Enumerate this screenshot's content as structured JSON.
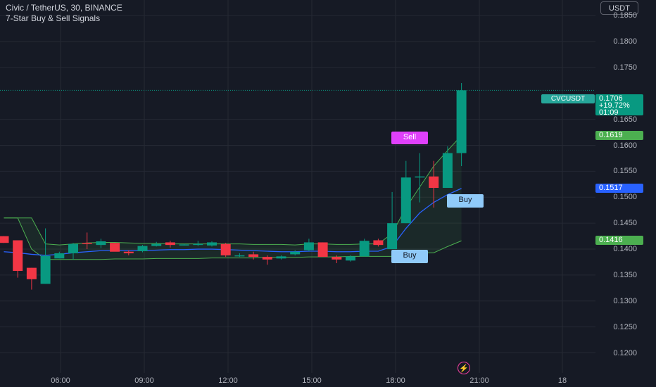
{
  "header": {
    "symbol_line": "Civic / TetherUS, 30, BINANCE",
    "indicator_line": "7-Star Buy & Sell Signals"
  },
  "currency_button": "USDT",
  "symbol_tag": "CVCUSDT",
  "last_price": {
    "price": "0.1706",
    "change": "+19.72%",
    "countdown": "01:09",
    "color": "#089981"
  },
  "price_scale": {
    "labels": [
      "0.1850",
      "0.1800",
      "0.1750",
      "0.1650",
      "0.1600",
      "0.1550",
      "0.1500",
      "0.1450",
      "0.1400",
      "0.1350",
      "0.1300",
      "0.1250",
      "0.1200"
    ]
  },
  "price_tags": [
    {
      "text": "0.1619",
      "color": "#4caf50",
      "value": 0.1619
    },
    {
      "text": "0.1517",
      "color": "#2962ff",
      "value": 0.1517
    },
    {
      "text": "0.1416",
      "color": "#4caf50",
      "value": 0.1416
    }
  ],
  "time_axis": {
    "labels": [
      "06:00",
      "09:00",
      "12:00",
      "15:00",
      "18:00",
      "21:00",
      "18"
    ]
  },
  "signals": [
    {
      "text": "Sell",
      "kind": "sell",
      "color": "#e040fb"
    },
    {
      "text": "Buy",
      "kind": "buy",
      "color": "#90caf9"
    },
    {
      "text": "Buy",
      "kind": "buy",
      "color": "#90caf9"
    }
  ],
  "colors": {
    "up": "#089981",
    "down": "#f23645",
    "background": "#161a25",
    "grid": "#252934",
    "blue_line": "#2962ff",
    "green_line": "#4caf50"
  },
  "chart_data": {
    "type": "candlestick",
    "symbol": "CVCUSDT",
    "interval": "30",
    "exchange": "BINANCE",
    "ylim": [
      0.1175,
      0.188
    ],
    "candles": [
      {
        "o": 0.1425,
        "h": 0.1425,
        "l": 0.1412,
        "c": 0.1412
      },
      {
        "o": 0.1417,
        "h": 0.1417,
        "l": 0.1345,
        "c": 0.1358
      },
      {
        "o": 0.1364,
        "h": 0.1364,
        "l": 0.1322,
        "c": 0.1342
      },
      {
        "o": 0.1333,
        "h": 0.144,
        "l": 0.1333,
        "c": 0.1387
      },
      {
        "o": 0.1382,
        "h": 0.1395,
        "l": 0.1382,
        "c": 0.1392
      },
      {
        "o": 0.1392,
        "h": 0.1412,
        "l": 0.138,
        "c": 0.141
      },
      {
        "o": 0.1412,
        "h": 0.1432,
        "l": 0.14,
        "c": 0.141
      },
      {
        "o": 0.1408,
        "h": 0.142,
        "l": 0.1402,
        "c": 0.1415
      },
      {
        "o": 0.1412,
        "h": 0.1412,
        "l": 0.1396,
        "c": 0.1395
      },
      {
        "o": 0.1395,
        "h": 0.1398,
        "l": 0.1388,
        "c": 0.1392
      },
      {
        "o": 0.1396,
        "h": 0.1408,
        "l": 0.1394,
        "c": 0.1406
      },
      {
        "o": 0.1406,
        "h": 0.1414,
        "l": 0.1405,
        "c": 0.141
      },
      {
        "o": 0.1413,
        "h": 0.1416,
        "l": 0.1403,
        "c": 0.1408
      },
      {
        "o": 0.1408,
        "h": 0.141,
        "l": 0.1407,
        "c": 0.1409
      },
      {
        "o": 0.141,
        "h": 0.1416,
        "l": 0.1406,
        "c": 0.141
      },
      {
        "o": 0.1407,
        "h": 0.1415,
        "l": 0.1405,
        "c": 0.1413
      },
      {
        "o": 0.141,
        "h": 0.1412,
        "l": 0.1385,
        "c": 0.1388
      },
      {
        "o": 0.1388,
        "h": 0.1392,
        "l": 0.1385,
        "c": 0.1388
      },
      {
        "o": 0.139,
        "h": 0.1395,
        "l": 0.138,
        "c": 0.1385
      },
      {
        "o": 0.1385,
        "h": 0.1388,
        "l": 0.137,
        "c": 0.138
      },
      {
        "o": 0.1382,
        "h": 0.1388,
        "l": 0.138,
        "c": 0.1386
      },
      {
        "o": 0.139,
        "h": 0.1398,
        "l": 0.1388,
        "c": 0.1395
      },
      {
        "o": 0.1398,
        "h": 0.142,
        "l": 0.1396,
        "c": 0.1413
      },
      {
        "o": 0.1413,
        "h": 0.1413,
        "l": 0.1385,
        "c": 0.1385
      },
      {
        "o": 0.1385,
        "h": 0.1388,
        "l": 0.1373,
        "c": 0.138
      },
      {
        "o": 0.1378,
        "h": 0.1388,
        "l": 0.1376,
        "c": 0.1386
      },
      {
        "o": 0.1386,
        "h": 0.142,
        "l": 0.1386,
        "c": 0.1416
      },
      {
        "o": 0.1417,
        "h": 0.142,
        "l": 0.1405,
        "c": 0.1408
      },
      {
        "o": 0.14,
        "h": 0.151,
        "l": 0.14,
        "c": 0.145
      },
      {
        "o": 0.145,
        "h": 0.157,
        "l": 0.145,
        "c": 0.1538
      },
      {
        "o": 0.1538,
        "h": 0.1585,
        "l": 0.149,
        "c": 0.154
      },
      {
        "o": 0.154,
        "h": 0.157,
        "l": 0.148,
        "c": 0.1518
      },
      {
        "o": 0.1518,
        "h": 0.1598,
        "l": 0.1518,
        "c": 0.1585
      },
      {
        "o": 0.1585,
        "h": 0.172,
        "l": 0.156,
        "c": 0.1706
      }
    ],
    "blue_line": [
      0.1395,
      0.1393,
      0.139,
      0.1388,
      0.139,
      0.1393,
      0.1395,
      0.1397,
      0.1397,
      0.1397,
      0.1397,
      0.1398,
      0.1399,
      0.1399,
      0.14,
      0.14,
      0.1399,
      0.1398,
      0.1397,
      0.1396,
      0.1395,
      0.1395,
      0.1396,
      0.1396,
      0.1395,
      0.1395,
      0.1396,
      0.1396,
      0.1405,
      0.144,
      0.147,
      0.149,
      0.1505,
      0.1517
    ],
    "green_line": [
      0.146,
      0.146,
      0.14,
      0.138,
      0.138,
      0.138,
      0.138,
      0.138,
      0.1381,
      0.1381,
      0.1381,
      0.1382,
      0.1382,
      0.1382,
      0.1382,
      0.1383,
      0.1383,
      0.1383,
      0.1383,
      0.1384,
      0.1384,
      0.1384,
      0.1385,
      0.1385,
      0.1385,
      0.1386,
      0.1386,
      0.1386,
      0.1386,
      0.1393,
      0.1393,
      0.1393,
      0.1405,
      0.1416
    ],
    "upper_line": [
      0.146,
      0.146,
      0.146,
      0.141,
      0.1408,
      0.141,
      0.1412,
      0.1413,
      0.1413,
      0.1412,
      0.1411,
      0.1411,
      0.141,
      0.141,
      0.141,
      0.141,
      0.141,
      0.141,
      0.1409,
      0.1409,
      0.1409,
      0.1408,
      0.141,
      0.141,
      0.1409,
      0.1409,
      0.141,
      0.141,
      0.143,
      0.148,
      0.152,
      0.156,
      0.159,
      0.1619
    ]
  }
}
